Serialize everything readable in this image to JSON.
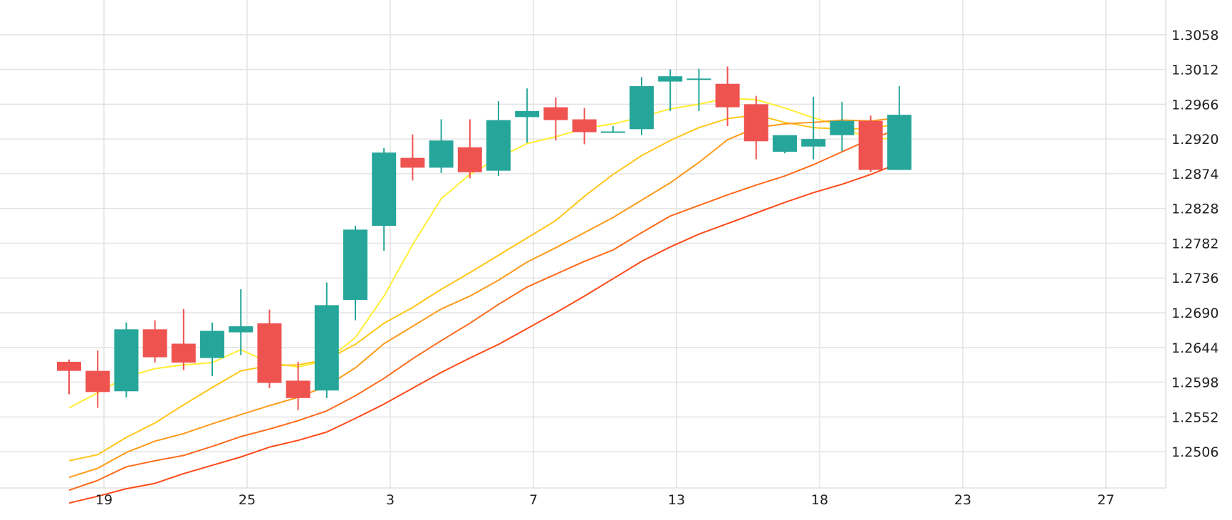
{
  "chart_data": {
    "type": "candlestick",
    "x_tick_labels": [
      "19",
      "25",
      "3",
      "7",
      "13",
      "18",
      "23",
      "27"
    ],
    "y_tick_labels": [
      "1.3058",
      "1.3012",
      "1.2966",
      "1.2920",
      "1.2874",
      "1.2828",
      "1.2782",
      "1.2736",
      "1.2690",
      "1.2644",
      "1.2598",
      "1.2552",
      "1.2506"
    ],
    "ylim": [
      1.2458,
      1.3104
    ],
    "grid": true,
    "colors": {
      "up": "#26a69a",
      "down": "#ef5350",
      "grid": "#e3e3e3",
      "ma_lines": [
        "#ffee33",
        "#ffc61a",
        "#ff9a1a",
        "#ff6a1a",
        "#ff4a1a"
      ]
    },
    "candles": [
      {
        "o": 1.2625,
        "h": 1.2628,
        "l": 1.2582,
        "c": 1.2613
      },
      {
        "o": 1.2613,
        "h": 1.264,
        "l": 1.2564,
        "c": 1.2585
      },
      {
        "o": 1.2586,
        "h": 1.2677,
        "l": 1.2578,
        "c": 1.2668
      },
      {
        "o": 1.2668,
        "h": 1.268,
        "l": 1.2624,
        "c": 1.2631
      },
      {
        "o": 1.2649,
        "h": 1.2695,
        "l": 1.2614,
        "c": 1.2624
      },
      {
        "o": 1.263,
        "h": 1.2677,
        "l": 1.2606,
        "c": 1.2666
      },
      {
        "o": 1.2664,
        "h": 1.2721,
        "l": 1.2634,
        "c": 1.2672
      },
      {
        "o": 1.2676,
        "h": 1.2694,
        "l": 1.259,
        "c": 1.2597
      },
      {
        "o": 1.26,
        "h": 1.2625,
        "l": 1.2561,
        "c": 1.2577
      },
      {
        "o": 1.2587,
        "h": 1.273,
        "l": 1.2577,
        "c": 1.27
      },
      {
        "o": 1.2707,
        "h": 1.2805,
        "l": 1.268,
        "c": 1.28
      },
      {
        "o": 1.2805,
        "h": 1.2908,
        "l": 1.2772,
        "c": 1.2902
      },
      {
        "o": 1.2895,
        "h": 1.2926,
        "l": 1.2865,
        "c": 1.2882
      },
      {
        "o": 1.2882,
        "h": 1.2946,
        "l": 1.2875,
        "c": 1.2918
      },
      {
        "o": 1.2909,
        "h": 1.2946,
        "l": 1.2868,
        "c": 1.2876
      },
      {
        "o": 1.2878,
        "h": 1.297,
        "l": 1.2871,
        "c": 1.2945
      },
      {
        "o": 1.2949,
        "h": 1.2987,
        "l": 1.2915,
        "c": 1.2957
      },
      {
        "o": 1.2962,
        "h": 1.2975,
        "l": 1.2918,
        "c": 1.2945
      },
      {
        "o": 1.2946,
        "h": 1.2961,
        "l": 1.2913,
        "c": 1.2929
      },
      {
        "o": 1.293,
        "h": 1.2937,
        "l": 1.2928,
        "c": 1.293
      },
      {
        "o": 1.2933,
        "h": 1.3002,
        "l": 1.2925,
        "c": 1.299
      },
      {
        "o": 1.2996,
        "h": 1.3012,
        "l": 1.2957,
        "c": 1.3003
      },
      {
        "o": 1.3,
        "h": 1.3013,
        "l": 1.2957,
        "c": 1.3
      },
      {
        "o": 1.2993,
        "h": 1.3016,
        "l": 1.2937,
        "c": 1.2962
      },
      {
        "o": 1.2966,
        "h": 1.2977,
        "l": 1.2893,
        "c": 1.2917
      },
      {
        "o": 1.2903,
        "h": 1.2925,
        "l": 1.2901,
        "c": 1.2925
      },
      {
        "o": 1.291,
        "h": 1.2976,
        "l": 1.2893,
        "c": 1.292
      },
      {
        "o": 1.2925,
        "h": 1.2969,
        "l": 1.2904,
        "c": 1.2944
      },
      {
        "o": 1.2944,
        "h": 1.2951,
        "l": 1.2876,
        "c": 1.2879
      },
      {
        "o": 1.2879,
        "h": 1.299,
        "l": 1.2879,
        "c": 1.2952
      }
    ],
    "moving_averages": [
      [
        1.2564,
        1.2584,
        1.2605,
        1.2616,
        1.2621,
        1.2624,
        1.2641,
        1.2624,
        1.2618,
        1.2627,
        1.2657,
        1.2712,
        1.278,
        1.2841,
        1.2873,
        1.2895,
        1.2914,
        1.2923,
        1.2934,
        1.294,
        1.2949,
        1.296,
        1.2966,
        1.2974,
        1.2972,
        1.2961,
        1.2948,
        1.2937,
        1.2918,
        1.2923
      ],
      [
        1.2494,
        1.2502,
        1.2525,
        1.2544,
        1.2568,
        1.2591,
        1.2613,
        1.262,
        1.2621,
        1.2628,
        1.2648,
        1.2676,
        1.2697,
        1.2721,
        1.2743,
        1.2766,
        1.2789,
        1.2812,
        1.2844,
        1.2873,
        1.2898,
        1.2918,
        1.2935,
        1.2947,
        1.2952,
        1.2942,
        1.2935,
        1.2933,
        1.2934,
        1.294
      ],
      [
        1.2472,
        1.2484,
        1.2505,
        1.252,
        1.253,
        1.2543,
        1.2555,
        1.2567,
        1.2578,
        1.2593,
        1.2617,
        1.2649,
        1.2672,
        1.2695,
        1.2712,
        1.2733,
        1.2757,
        1.2776,
        1.2796,
        1.2816,
        1.2839,
        1.2862,
        1.2889,
        1.2919,
        1.2935,
        1.294,
        1.2942,
        1.2945,
        1.2944,
        1.2948
      ],
      [
        1.2455,
        1.2468,
        1.2486,
        1.2494,
        1.2501,
        1.2513,
        1.2526,
        1.2536,
        1.2547,
        1.256,
        1.258,
        1.2603,
        1.2629,
        1.2653,
        1.2676,
        1.2701,
        1.2724,
        1.2741,
        1.2758,
        1.2773,
        1.2796,
        1.2818,
        1.2832,
        1.2846,
        1.2859,
        1.2871,
        1.2886,
        1.2903,
        1.292,
        1.2933
      ],
      [
        1.2438,
        1.2447,
        1.2457,
        1.2464,
        1.2477,
        1.2488,
        1.2499,
        1.2512,
        1.2521,
        1.2532,
        1.255,
        1.2569,
        1.259,
        1.2611,
        1.263,
        1.2648,
        1.2669,
        1.269,
        1.2712,
        1.2735,
        1.2758,
        1.2777,
        1.2794,
        1.2808,
        1.2822,
        1.2836,
        1.2849,
        1.286,
        1.2873,
        1.2888
      ]
    ]
  }
}
